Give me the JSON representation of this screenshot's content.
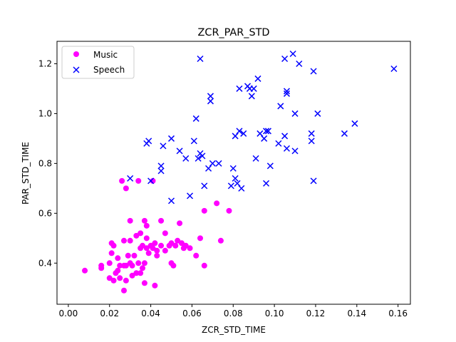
{
  "chart_data": {
    "type": "scatter",
    "title": "ZCR_PAR_STD",
    "xlabel": "ZCR_STD_TIME",
    "ylabel": "PAR_STD_TIME",
    "xlim": [
      -0.0055,
      0.166
    ],
    "ylim": [
      0.235,
      1.29
    ],
    "xticks": [
      "0.00",
      "0.02",
      "0.04",
      "0.06",
      "0.08",
      "0.10",
      "0.12",
      "0.14",
      "0.16"
    ],
    "yticks": [
      "0.4",
      "0.6",
      "0.8",
      "1.0",
      "1.2"
    ],
    "grid": false,
    "legend_position": "top-left",
    "series": [
      {
        "name": "Music",
        "marker": "circle",
        "color": "#ff00ff",
        "points": [
          [
            0.008,
            0.37
          ],
          [
            0.016,
            0.39
          ],
          [
            0.016,
            0.38
          ],
          [
            0.02,
            0.34
          ],
          [
            0.02,
            0.4
          ],
          [
            0.021,
            0.44
          ],
          [
            0.021,
            0.48
          ],
          [
            0.022,
            0.33
          ],
          [
            0.022,
            0.47
          ],
          [
            0.023,
            0.36
          ],
          [
            0.024,
            0.37
          ],
          [
            0.024,
            0.42
          ],
          [
            0.025,
            0.34
          ],
          [
            0.025,
            0.39
          ],
          [
            0.026,
            0.73
          ],
          [
            0.027,
            0.29
          ],
          [
            0.027,
            0.49
          ],
          [
            0.027,
            0.39
          ],
          [
            0.028,
            0.7
          ],
          [
            0.028,
            0.39
          ],
          [
            0.028,
            0.33
          ],
          [
            0.029,
            0.43
          ],
          [
            0.03,
            0.57
          ],
          [
            0.03,
            0.49
          ],
          [
            0.03,
            0.4
          ],
          [
            0.031,
            0.39
          ],
          [
            0.031,
            0.35
          ],
          [
            0.032,
            0.43
          ],
          [
            0.033,
            0.51
          ],
          [
            0.033,
            0.36
          ],
          [
            0.034,
            0.73
          ],
          [
            0.034,
            0.4
          ],
          [
            0.035,
            0.52
          ],
          [
            0.035,
            0.46
          ],
          [
            0.035,
            0.36
          ],
          [
            0.036,
            0.47
          ],
          [
            0.036,
            0.38
          ],
          [
            0.037,
            0.4
          ],
          [
            0.037,
            0.32
          ],
          [
            0.037,
            0.57
          ],
          [
            0.038,
            0.55
          ],
          [
            0.038,
            0.5
          ],
          [
            0.038,
            0.46
          ],
          [
            0.039,
            0.44
          ],
          [
            0.04,
            0.47
          ],
          [
            0.041,
            0.46
          ],
          [
            0.041,
            0.73
          ],
          [
            0.042,
            0.31
          ],
          [
            0.042,
            0.48
          ],
          [
            0.043,
            0.45
          ],
          [
            0.043,
            0.43
          ],
          [
            0.045,
            0.57
          ],
          [
            0.045,
            0.47
          ],
          [
            0.047,
            0.52
          ],
          [
            0.047,
            0.45
          ],
          [
            0.049,
            0.47
          ],
          [
            0.05,
            0.48
          ],
          [
            0.05,
            0.4
          ],
          [
            0.051,
            0.39
          ],
          [
            0.052,
            0.47
          ],
          [
            0.053,
            0.49
          ],
          [
            0.054,
            0.56
          ],
          [
            0.055,
            0.48
          ],
          [
            0.056,
            0.46
          ],
          [
            0.057,
            0.47
          ],
          [
            0.059,
            0.46
          ],
          [
            0.062,
            0.43
          ],
          [
            0.064,
            0.5
          ],
          [
            0.066,
            0.61
          ],
          [
            0.066,
            0.39
          ],
          [
            0.072,
            0.64
          ],
          [
            0.074,
            0.49
          ],
          [
            0.078,
            0.61
          ]
        ]
      },
      {
        "name": "Speech",
        "marker": "x",
        "color": "#0000ff",
        "points": [
          [
            0.03,
            0.74
          ],
          [
            0.038,
            0.88
          ],
          [
            0.039,
            0.89
          ],
          [
            0.04,
            0.73
          ],
          [
            0.045,
            0.77
          ],
          [
            0.045,
            0.79
          ],
          [
            0.046,
            0.87
          ],
          [
            0.05,
            0.65
          ],
          [
            0.05,
            0.9
          ],
          [
            0.054,
            0.85
          ],
          [
            0.057,
            0.82
          ],
          [
            0.059,
            0.67
          ],
          [
            0.061,
            0.89
          ],
          [
            0.062,
            0.98
          ],
          [
            0.063,
            0.82
          ],
          [
            0.064,
            1.22
          ],
          [
            0.064,
            0.84
          ],
          [
            0.065,
            0.83
          ],
          [
            0.066,
            0.71
          ],
          [
            0.068,
            0.78
          ],
          [
            0.069,
            1.05
          ],
          [
            0.069,
            1.07
          ],
          [
            0.07,
            0.8
          ],
          [
            0.073,
            0.8
          ],
          [
            0.079,
            0.71
          ],
          [
            0.08,
            0.78
          ],
          [
            0.081,
            0.91
          ],
          [
            0.081,
            0.74
          ],
          [
            0.082,
            0.72
          ],
          [
            0.083,
            0.93
          ],
          [
            0.083,
            1.1
          ],
          [
            0.084,
            0.7
          ],
          [
            0.085,
            0.92
          ],
          [
            0.087,
            1.11
          ],
          [
            0.088,
            1.1
          ],
          [
            0.089,
            1.07
          ],
          [
            0.09,
            1.1
          ],
          [
            0.091,
            0.82
          ],
          [
            0.092,
            1.14
          ],
          [
            0.093,
            0.92
          ],
          [
            0.095,
            0.9
          ],
          [
            0.096,
            0.93
          ],
          [
            0.096,
            0.72
          ],
          [
            0.097,
            0.93
          ],
          [
            0.098,
            0.79
          ],
          [
            0.102,
            0.88
          ],
          [
            0.103,
            1.03
          ],
          [
            0.105,
            1.22
          ],
          [
            0.105,
            0.91
          ],
          [
            0.106,
            1.09
          ],
          [
            0.106,
            1.08
          ],
          [
            0.106,
            0.86
          ],
          [
            0.109,
            1.24
          ],
          [
            0.11,
            0.85
          ],
          [
            0.11,
            1.0
          ],
          [
            0.112,
            1.2
          ],
          [
            0.118,
            0.92
          ],
          [
            0.118,
            0.89
          ],
          [
            0.119,
            0.73
          ],
          [
            0.119,
            1.17
          ],
          [
            0.121,
            1.0
          ],
          [
            0.134,
            0.92
          ],
          [
            0.139,
            0.96
          ],
          [
            0.158,
            1.18
          ]
        ]
      }
    ]
  }
}
